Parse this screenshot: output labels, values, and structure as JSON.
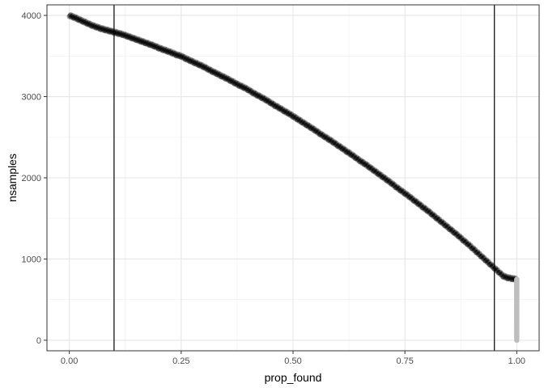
{
  "chart_data": {
    "type": "scatter",
    "title": "",
    "xlabel": "prop_found",
    "ylabel": "nsamples",
    "xlim": [
      -0.05,
      1.05
    ],
    "ylim": [
      -130,
      4130
    ],
    "grid": true,
    "x_ticks": [
      "0.00",
      "0.25",
      "0.50",
      "0.75",
      "1.00"
    ],
    "x_tick_values": [
      0,
      0.25,
      0.5,
      0.75,
      1.0
    ],
    "y_ticks": [
      "0",
      "1000",
      "2000",
      "3000",
      "4000"
    ],
    "y_tick_values": [
      0,
      1000,
      2000,
      3000,
      4000
    ],
    "vlines": [
      0.1,
      0.95
    ],
    "series": [
      {
        "color": "#000000",
        "opacity": 0.35,
        "description_points": "curve from (0,4000) to (1,~750)",
        "values": [
          [
            0.0,
            4000
          ],
          [
            0.01,
            3980
          ],
          [
            0.02,
            3955
          ],
          [
            0.03,
            3930
          ],
          [
            0.04,
            3905
          ],
          [
            0.05,
            3880
          ],
          [
            0.06,
            3860
          ],
          [
            0.07,
            3840
          ],
          [
            0.08,
            3825
          ],
          [
            0.09,
            3810
          ],
          [
            0.1,
            3795
          ],
          [
            0.11,
            3780
          ],
          [
            0.12,
            3765
          ],
          [
            0.13,
            3745
          ],
          [
            0.14,
            3725
          ],
          [
            0.15,
            3705
          ],
          [
            0.16,
            3685
          ],
          [
            0.17,
            3665
          ],
          [
            0.18,
            3645
          ],
          [
            0.19,
            3625
          ],
          [
            0.2,
            3600
          ],
          [
            0.21,
            3580
          ],
          [
            0.22,
            3560
          ],
          [
            0.23,
            3540
          ],
          [
            0.24,
            3515
          ],
          [
            0.25,
            3500
          ],
          [
            0.26,
            3470
          ],
          [
            0.27,
            3445
          ],
          [
            0.28,
            3420
          ],
          [
            0.29,
            3395
          ],
          [
            0.3,
            3370
          ],
          [
            0.31,
            3340
          ],
          [
            0.32,
            3310
          ],
          [
            0.33,
            3285
          ],
          [
            0.34,
            3255
          ],
          [
            0.35,
            3230
          ],
          [
            0.36,
            3200
          ],
          [
            0.37,
            3170
          ],
          [
            0.38,
            3140
          ],
          [
            0.39,
            3115
          ],
          [
            0.4,
            3085
          ],
          [
            0.41,
            3050
          ],
          [
            0.42,
            3020
          ],
          [
            0.43,
            2990
          ],
          [
            0.44,
            2960
          ],
          [
            0.45,
            2925
          ],
          [
            0.46,
            2890
          ],
          [
            0.47,
            2860
          ],
          [
            0.48,
            2825
          ],
          [
            0.49,
            2795
          ],
          [
            0.5,
            2760
          ],
          [
            0.51,
            2725
          ],
          [
            0.52,
            2690
          ],
          [
            0.53,
            2655
          ],
          [
            0.54,
            2620
          ],
          [
            0.55,
            2585
          ],
          [
            0.56,
            2545
          ],
          [
            0.57,
            2510
          ],
          [
            0.58,
            2475
          ],
          [
            0.59,
            2440
          ],
          [
            0.6,
            2400
          ],
          [
            0.61,
            2365
          ],
          [
            0.62,
            2325
          ],
          [
            0.63,
            2290
          ],
          [
            0.64,
            2250
          ],
          [
            0.65,
            2210
          ],
          [
            0.66,
            2175
          ],
          [
            0.67,
            2135
          ],
          [
            0.68,
            2095
          ],
          [
            0.69,
            2055
          ],
          [
            0.7,
            2015
          ],
          [
            0.71,
            1975
          ],
          [
            0.72,
            1935
          ],
          [
            0.73,
            1890
          ],
          [
            0.74,
            1850
          ],
          [
            0.75,
            1810
          ],
          [
            0.76,
            1770
          ],
          [
            0.77,
            1725
          ],
          [
            0.78,
            1685
          ],
          [
            0.79,
            1640
          ],
          [
            0.8,
            1600
          ],
          [
            0.81,
            1555
          ],
          [
            0.82,
            1510
          ],
          [
            0.83,
            1465
          ],
          [
            0.84,
            1420
          ],
          [
            0.85,
            1375
          ],
          [
            0.86,
            1330
          ],
          [
            0.87,
            1285
          ],
          [
            0.88,
            1235
          ],
          [
            0.89,
            1190
          ],
          [
            0.9,
            1140
          ],
          [
            0.91,
            1090
          ],
          [
            0.92,
            1040
          ],
          [
            0.93,
            990
          ],
          [
            0.94,
            940
          ],
          [
            0.95,
            890
          ],
          [
            0.96,
            840
          ],
          [
            0.97,
            790
          ],
          [
            0.98,
            770
          ],
          [
            0.99,
            760
          ],
          [
            1.0,
            750
          ]
        ]
      },
      {
        "color": "#bdbdbd",
        "opacity": 1.0,
        "values": [
          [
            1.0,
            750
          ],
          [
            1.0,
            700
          ],
          [
            1.0,
            650
          ],
          [
            1.0,
            600
          ],
          [
            1.0,
            550
          ],
          [
            1.0,
            500
          ],
          [
            1.0,
            450
          ],
          [
            1.0,
            400
          ],
          [
            1.0,
            350
          ],
          [
            1.0,
            300
          ],
          [
            1.0,
            250
          ],
          [
            1.0,
            200
          ],
          [
            1.0,
            150
          ],
          [
            1.0,
            100
          ],
          [
            1.0,
            50
          ],
          [
            1.0,
            0
          ]
        ]
      }
    ]
  }
}
